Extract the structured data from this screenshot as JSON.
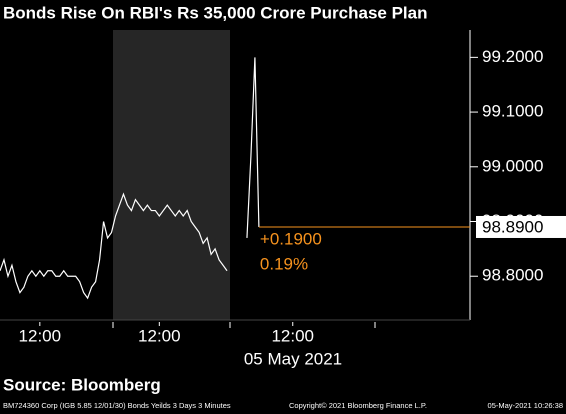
{
  "chart_data": {
    "type": "line",
    "title": "Bonds Rise On RBI's Rs 35,000 Crore Purchase Plan",
    "series": [
      {
        "color": "#ffffff",
        "values": [
          98.81,
          98.83,
          98.8,
          98.82,
          98.79,
          98.77,
          98.78,
          98.8,
          98.81,
          98.8,
          98.81,
          98.8,
          98.81,
          98.81,
          98.8,
          98.8,
          98.81,
          98.8,
          98.8,
          98.8,
          98.79,
          98.77,
          98.76,
          98.78,
          98.79,
          98.83,
          98.9,
          98.87,
          98.88,
          98.91,
          98.93,
          98.95,
          98.93,
          98.92,
          98.94,
          98.93,
          98.92,
          98.93,
          98.92,
          98.92,
          98.91,
          98.92,
          98.93,
          98.92,
          98.91,
          98.92,
          98.91,
          98.92,
          98.9,
          98.89,
          98.88,
          98.86,
          98.87,
          98.84,
          98.85,
          98.83,
          98.82,
          98.81,
          null,
          null,
          null,
          null,
          98.87,
          99.02,
          99.2,
          98.89
        ]
      }
    ],
    "xlim": [
      0,
      118
    ],
    "xticks": [
      {
        "value": 10,
        "label": "12:00"
      },
      {
        "value": 40,
        "label": "12:00"
      },
      {
        "value": 73.5,
        "label": "12:00"
      }
    ],
    "date_label": "05 May 2021",
    "ylim": [
      98.72,
      99.25
    ],
    "yticks": [
      {
        "value": 98.8,
        "label": "98.8000"
      },
      {
        "value": 98.9,
        "label": "98.9000"
      },
      {
        "value": 99.0,
        "label": "99.0000"
      },
      {
        "value": 99.1,
        "label": "99.1000"
      },
      {
        "value": 99.2,
        "label": "99.2000"
      }
    ],
    "last_price": {
      "value": 98.89,
      "label": "98.8900",
      "color": "#f7931e"
    },
    "annotations": [
      "+0.1900",
      "0.19%"
    ],
    "source": "Source: Bloomberg",
    "footer_left": "BM724360 Corp (IGB 5.85 12/01/30) Bonds Yeilds 3 Days 3 Minutes",
    "footer_mid": "Copyright© 2021 Bloomberg Finance L.P.",
    "footer_right": "05-May-2021 10:26:38"
  }
}
